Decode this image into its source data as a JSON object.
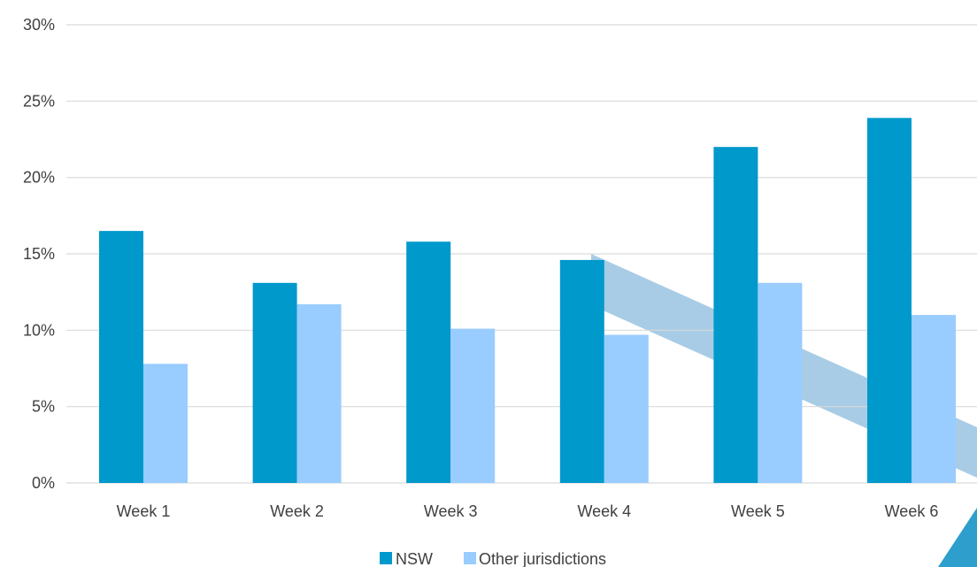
{
  "chart_data": {
    "type": "bar",
    "categories": [
      "Week 1",
      "Week 2",
      "Week 3",
      "Week 4",
      "Week 5",
      "Week 6"
    ],
    "series": [
      {
        "name": "NSW",
        "values": [
          16.5,
          13.1,
          15.8,
          14.6,
          22.0,
          23.9
        ],
        "color": "#0099cc"
      },
      {
        "name": "Other jurisdictions",
        "values": [
          7.8,
          11.7,
          10.1,
          9.7,
          13.1,
          11.0
        ],
        "color": "#99ccff"
      }
    ],
    "yticks": [
      "0%",
      "5%",
      "10%",
      "15%",
      "20%",
      "25%",
      "30%"
    ],
    "ylim": [
      0,
      30
    ],
    "grid": true,
    "legend": "bottom-center",
    "decoration_colors": {
      "band": "#a8cce5",
      "corner": "#2e9fcc"
    }
  }
}
